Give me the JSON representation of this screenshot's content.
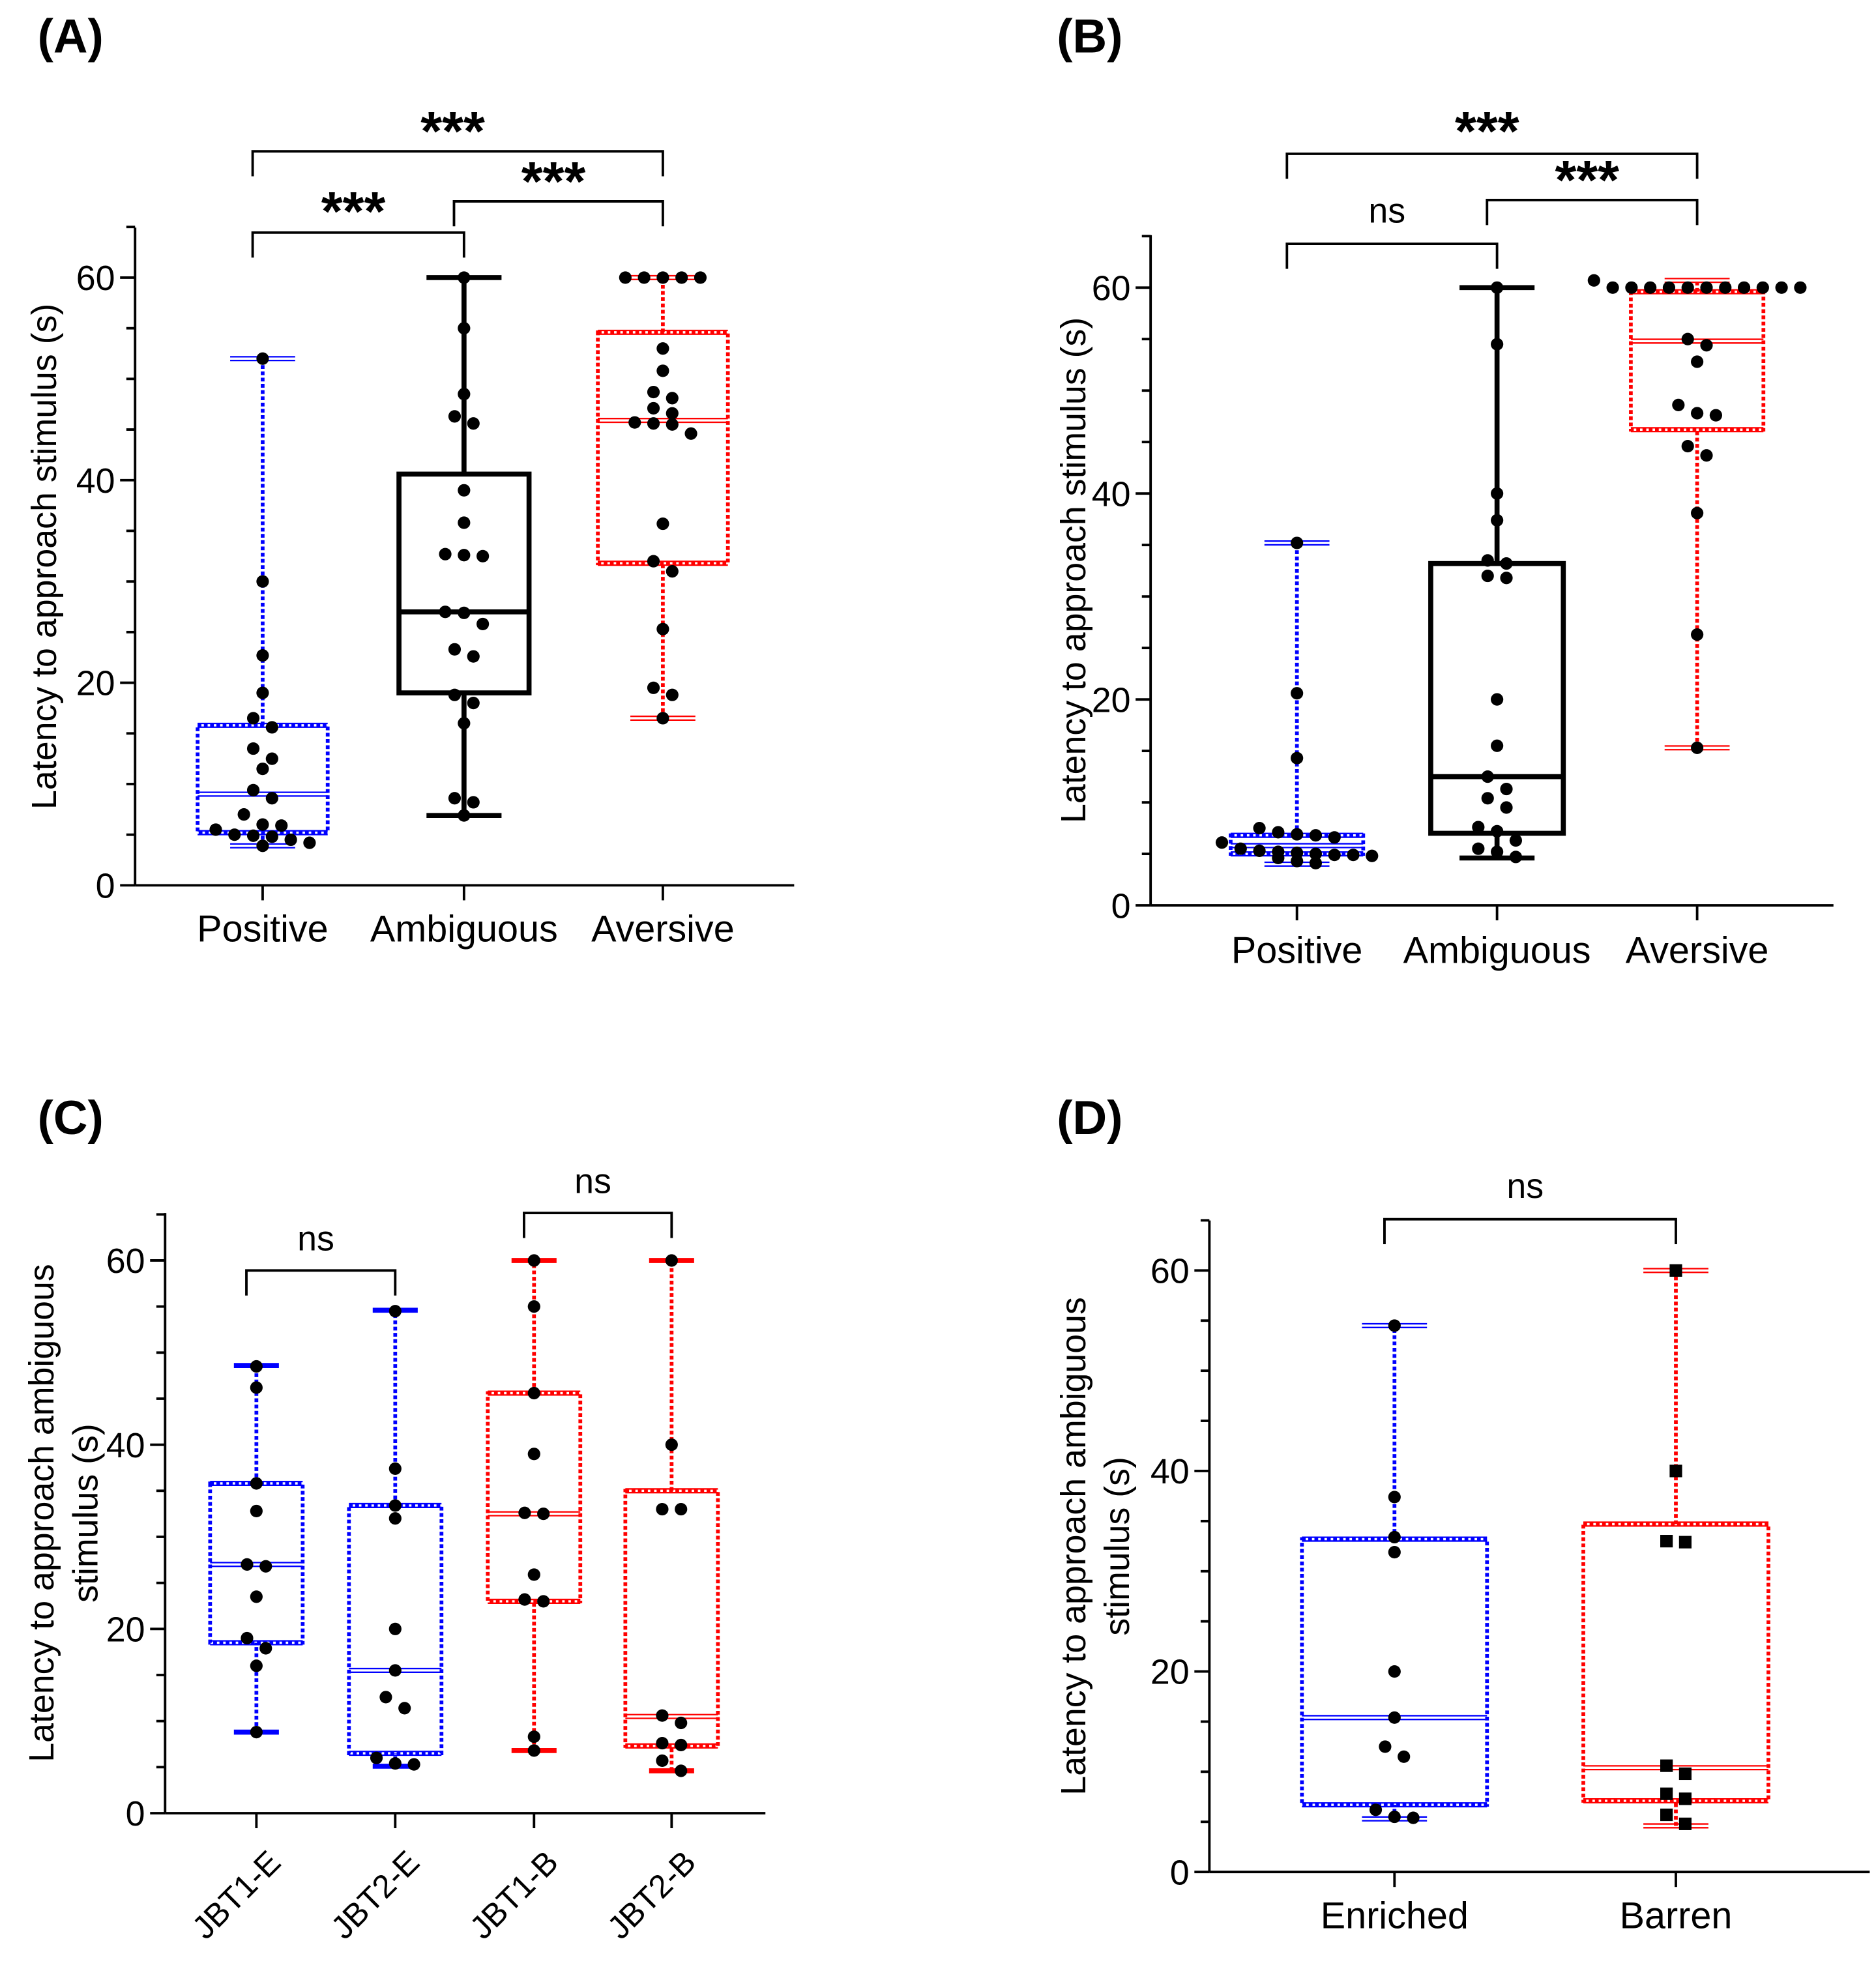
{
  "colors": {
    "blue": "#0000ff",
    "red": "#ff0000",
    "black": "#000000"
  },
  "chart_data": [
    {
      "id": "A",
      "panel_label": "(A)",
      "type": "box",
      "ylabel": "Latency to approach stimulus (s)",
      "ylim": [
        0,
        65
      ],
      "yticks": [
        "0",
        "20",
        "40",
        "60"
      ],
      "categories": [
        "Positive",
        "Ambiguous",
        "Aversive"
      ],
      "series": [
        {
          "name": "Positive",
          "color": "blue",
          "style": "dotted",
          "q1": 5.2,
          "median": 9,
          "q3": 15.8,
          "min": 3.9,
          "max": 52,
          "points": [
            52,
            30,
            22.7,
            19,
            16.5,
            15.6,
            13.5,
            12.5,
            11.5,
            9.4,
            8.6,
            7,
            6,
            5.9,
            5.5,
            5,
            4.9,
            4.8,
            4.5,
            4.2,
            3.9
          ]
        },
        {
          "name": "Ambiguous",
          "color": "black",
          "style": "solid",
          "q1": 19,
          "median": 27,
          "q3": 40.6,
          "min": 6.9,
          "max": 60,
          "points": [
            60,
            55,
            48.5,
            46.3,
            45.6,
            39,
            35.8,
            32.7,
            32.6,
            32.5,
            27,
            26.9,
            25.8,
            23.3,
            22.6,
            18.8,
            18,
            16,
            8.6,
            8.2,
            6.9
          ]
        },
        {
          "name": "Aversive",
          "color": "red",
          "style": "dotted",
          "q1": 31.8,
          "median": 45.9,
          "q3": 54.6,
          "min": 16.5,
          "max": 60,
          "points": [
            60,
            60,
            60,
            60,
            60,
            53,
            50.8,
            48.7,
            48.1,
            47.1,
            46.6,
            45.6,
            45.7,
            45.5,
            44.6,
            35.7,
            32,
            31,
            25.3,
            19.5,
            18.8,
            16.5
          ]
        }
      ],
      "comparisons": [
        {
          "groups": [
            0,
            1
          ],
          "label": "***"
        },
        {
          "groups": [
            1,
            2
          ],
          "label": "***"
        },
        {
          "groups": [
            0,
            2
          ],
          "label": "***"
        }
      ]
    },
    {
      "id": "B",
      "panel_label": "(B)",
      "type": "box",
      "ylabel": "Latency to approach stimulus (s)",
      "ylim": [
        0,
        65
      ],
      "yticks": [
        "0",
        "20",
        "40",
        "60"
      ],
      "categories": [
        "Positive",
        "Ambiguous",
        "Aversive"
      ],
      "series": [
        {
          "name": "Positive",
          "color": "blue",
          "style": "dotted",
          "q1": 5,
          "median": 5.8,
          "q3": 6.8,
          "min": 4.0,
          "max": 35.2,
          "points": [
            35.2,
            20.6,
            14.3,
            7.5,
            6.8,
            6.6,
            6.9,
            7.1,
            6.1,
            5.5,
            4.8,
            5.1,
            5.2,
            4.9,
            5.3,
            5.0,
            4.6,
            4.9,
            4.1,
            4.3
          ]
        },
        {
          "name": "Ambiguous",
          "color": "black",
          "style": "solid",
          "q1": 7,
          "median": 12.5,
          "q3": 33.2,
          "min": 4.6,
          "max": 60,
          "points": [
            60,
            54.5,
            40,
            37.4,
            33.5,
            33.2,
            32,
            31.8,
            20,
            15.5,
            12.5,
            11.3,
            10.4,
            9.5,
            7.6,
            7.2,
            6.3,
            5.2,
            4.7,
            5.5
          ]
        },
        {
          "name": "Aversive",
          "color": "red",
          "style": "dotted",
          "q1": 46.2,
          "median": 54.8,
          "q3": 59.6,
          "min": 15.3,
          "max": 60.7,
          "points": [
            60,
            60,
            60,
            60,
            60,
            60,
            60,
            60,
            60,
            60,
            60,
            60.7,
            55,
            54.4,
            52.8,
            48.6,
            47.8,
            47.6,
            44.6,
            43.7,
            38.1,
            26.3,
            15.3
          ]
        }
      ],
      "comparisons": [
        {
          "groups": [
            0,
            1
          ],
          "label": "ns"
        },
        {
          "groups": [
            1,
            2
          ],
          "label": "***"
        },
        {
          "groups": [
            0,
            2
          ],
          "label": "***"
        }
      ]
    },
    {
      "id": "C",
      "panel_label": "(C)",
      "type": "box",
      "ylabel": "Latency to approach ambiguous",
      "ylabel2": "stimulus (s)",
      "ylim": [
        0,
        65
      ],
      "yticks": [
        "0",
        "20",
        "40",
        "60"
      ],
      "categories": [
        "JBT1-E",
        "JBT2-E",
        "JBT1-B",
        "JBT2-B"
      ],
      "series": [
        {
          "name": "JBT1-E",
          "color": "blue",
          "style": "dotted",
          "caps": "thick",
          "q1": 18.5,
          "median": 27,
          "q3": 35.8,
          "min": 8.8,
          "max": 48.6,
          "points": [
            48.5,
            46.2,
            35.8,
            32.8,
            27,
            26.8,
            23.5,
            19,
            17.9,
            16,
            8.8
          ]
        },
        {
          "name": "JBT2-E",
          "color": "blue",
          "style": "dotted",
          "caps": "thick",
          "q1": 6.5,
          "median": 15.5,
          "q3": 33.4,
          "min": 5.1,
          "max": 54.6,
          "points": [
            54.5,
            37.4,
            33.4,
            32,
            20,
            15.5,
            12.6,
            11.4,
            6,
            5.3,
            5.4
          ]
        },
        {
          "name": "JBT1-B",
          "color": "red",
          "style": "dotted",
          "caps": "thick",
          "q1": 23,
          "median": 32.5,
          "q3": 45.6,
          "min": 6.8,
          "max": 60,
          "points": [
            60,
            55,
            45.6,
            39,
            32.6,
            32.5,
            25.9,
            23.2,
            23,
            8.3,
            6.8
          ]
        },
        {
          "name": "JBT2-B",
          "color": "red",
          "style": "dotted",
          "caps": "thick",
          "q1": 7.3,
          "median": 10.5,
          "q3": 35,
          "min": 4.6,
          "max": 60,
          "points": [
            60,
            40,
            33,
            33,
            10.6,
            9.8,
            7.6,
            7.4,
            5.7,
            4.6
          ]
        }
      ],
      "comparisons": [
        {
          "groups": [
            0,
            1
          ],
          "label": "ns"
        },
        {
          "groups": [
            2,
            3
          ],
          "label": "ns"
        }
      ]
    },
    {
      "id": "D",
      "panel_label": "(D)",
      "type": "box",
      "ylabel": "Latency to approach ambiguous",
      "ylabel2": "stimulus (s)",
      "ylim": [
        0,
        65
      ],
      "yticks": [
        "0",
        "20",
        "40",
        "60"
      ],
      "categories": [
        "Enriched",
        "Barren"
      ],
      "series": [
        {
          "name": "Enriched",
          "color": "blue",
          "style": "dotted",
          "marker": "circle",
          "q1": 6.7,
          "median": 15.4,
          "q3": 33.2,
          "min": 5.3,
          "max": 54.5,
          "points": [
            54.5,
            37.4,
            33.4,
            31.9,
            20,
            15.4,
            12.5,
            11.5,
            6.2,
            5.5,
            5.4
          ]
        },
        {
          "name": "Barren",
          "color": "red",
          "style": "dotted",
          "marker": "square",
          "q1": 7.1,
          "median": 10.4,
          "q3": 34.7,
          "min": 4.6,
          "max": 60,
          "points": [
            60,
            40,
            32.9,
            33,
            10.6,
            9.8,
            7.3,
            7.8,
            5.7,
            4.8
          ]
        }
      ],
      "comparisons": [
        {
          "groups": [
            0,
            1
          ],
          "label": "ns"
        }
      ]
    }
  ]
}
